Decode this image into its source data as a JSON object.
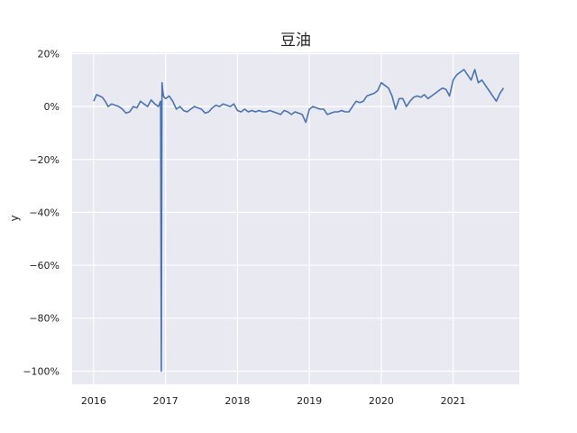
{
  "chart_data": {
    "type": "line",
    "title": "豆油",
    "xlabel": "",
    "ylabel": "y",
    "xlim": [
      2015.7,
      2021.92
    ],
    "ylim": [
      -1.05,
      0.205
    ],
    "x_ticks": [
      2016,
      2017,
      2018,
      2019,
      2020,
      2021
    ],
    "x_tick_labels": [
      "2016",
      "2017",
      "2018",
      "2019",
      "2020",
      "2021"
    ],
    "y_ticks": [
      0.2,
      0,
      -0.2,
      -0.4,
      -0.6,
      -0.8,
      -1.0
    ],
    "y_tick_labels": [
      "20%",
      "0%",
      "−20%",
      "−40%",
      "−60%",
      "−80%",
      "−100%"
    ],
    "grid": true,
    "colors": {
      "background": "#e9e9f1",
      "grid": "#ffffff",
      "line": "#4c72b0"
    },
    "series": [
      {
        "x": [
          2016.0,
          2016.04,
          2016.08,
          2016.12,
          2016.16,
          2016.2,
          2016.25,
          2016.3,
          2016.35,
          2016.4,
          2016.45,
          2016.5,
          2016.55,
          2016.6,
          2016.65,
          2016.7,
          2016.75,
          2016.8,
          2016.85,
          2016.9,
          2016.93,
          2016.94,
          2016.95,
          2016.96,
          2016.97,
          2016.98,
          2017.0,
          2017.05,
          2017.1,
          2017.15,
          2017.2,
          2017.25,
          2017.3,
          2017.35,
          2017.4,
          2017.45,
          2017.5,
          2017.55,
          2017.6,
          2017.65,
          2017.7,
          2017.75,
          2017.8,
          2017.85,
          2017.9,
          2017.95,
          2018.0,
          2018.05,
          2018.1,
          2018.15,
          2018.2,
          2018.25,
          2018.3,
          2018.35,
          2018.4,
          2018.45,
          2018.5,
          2018.55,
          2018.6,
          2018.65,
          2018.7,
          2018.75,
          2018.8,
          2018.85,
          2018.9,
          2018.95,
          2019.0,
          2019.05,
          2019.1,
          2019.15,
          2019.2,
          2019.25,
          2019.3,
          2019.35,
          2019.4,
          2019.45,
          2019.5,
          2019.55,
          2019.6,
          2019.65,
          2019.7,
          2019.75,
          2019.8,
          2019.85,
          2019.9,
          2019.95,
          2020.0,
          2020.05,
          2020.1,
          2020.15,
          2020.2,
          2020.25,
          2020.3,
          2020.35,
          2020.4,
          2020.45,
          2020.5,
          2020.55,
          2020.6,
          2020.65,
          2020.7,
          2020.75,
          2020.8,
          2020.85,
          2020.9,
          2020.95,
          2021.0,
          2021.05,
          2021.1,
          2021.15,
          2021.2,
          2021.25,
          2021.3,
          2021.35,
          2021.4,
          2021.45,
          2021.5,
          2021.55,
          2021.6,
          2021.65,
          2021.7
        ],
        "y": [
          0.02,
          0.045,
          0.04,
          0.035,
          0.02,
          0.0,
          0.01,
          0.005,
          0.0,
          -0.01,
          -0.025,
          -0.02,
          0.0,
          -0.005,
          0.02,
          0.01,
          0.0,
          0.025,
          0.01,
          0.0,
          0.02,
          -1.0,
          0.09,
          0.06,
          0.04,
          0.035,
          0.03,
          0.04,
          0.02,
          -0.01,
          0.0,
          -0.015,
          -0.02,
          -0.01,
          0.0,
          -0.005,
          -0.01,
          -0.025,
          -0.02,
          -0.005,
          0.005,
          0.0,
          0.01,
          0.005,
          0.0,
          0.01,
          -0.015,
          -0.02,
          -0.01,
          -0.02,
          -0.015,
          -0.02,
          -0.015,
          -0.02,
          -0.02,
          -0.015,
          -0.02,
          -0.025,
          -0.03,
          -0.015,
          -0.02,
          -0.03,
          -0.02,
          -0.025,
          -0.03,
          -0.06,
          -0.01,
          0.0,
          -0.005,
          -0.01,
          -0.01,
          -0.03,
          -0.025,
          -0.02,
          -0.02,
          -0.015,
          -0.02,
          -0.02,
          0.0,
          0.02,
          0.015,
          0.02,
          0.04,
          0.045,
          0.05,
          0.06,
          0.09,
          0.08,
          0.07,
          0.04,
          -0.01,
          0.03,
          0.03,
          0.0,
          0.02,
          0.035,
          0.04,
          0.035,
          0.045,
          0.03,
          0.04,
          0.05,
          0.06,
          0.07,
          0.065,
          0.04,
          0.1,
          0.12,
          0.13,
          0.14,
          0.12,
          0.1,
          0.14,
          0.09,
          0.1,
          0.08,
          0.06,
          0.04,
          0.02,
          0.05,
          0.07
        ]
      }
    ]
  }
}
